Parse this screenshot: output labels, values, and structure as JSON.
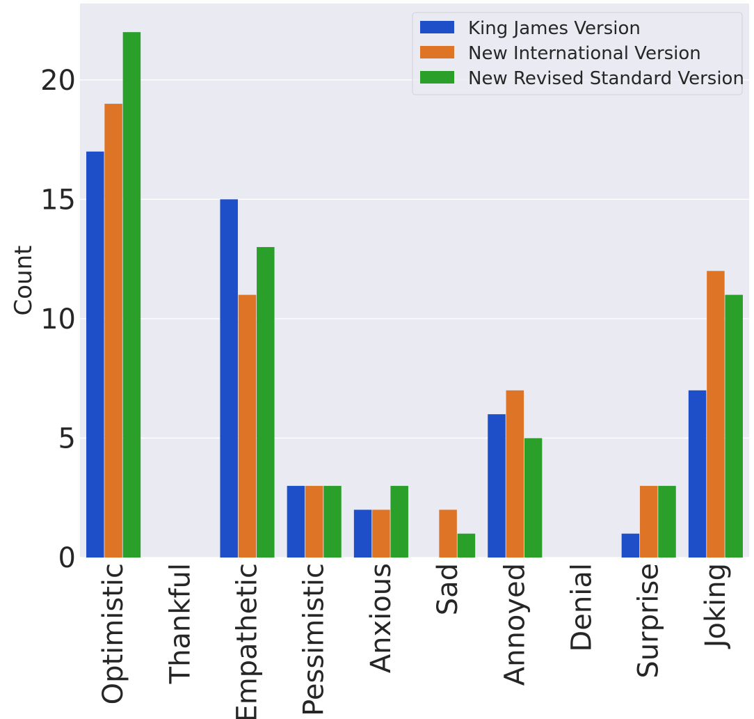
{
  "chart_data": {
    "type": "bar",
    "title": "",
    "xlabel": "",
    "ylabel": "Count",
    "ylim": [
      0,
      23.2
    ],
    "yticks": [
      0,
      5,
      10,
      15,
      20
    ],
    "grid": true,
    "legend_position": "top-right",
    "categories": [
      "Optimistic",
      "Thankful",
      "Empathetic",
      "Pessimistic",
      "Anxious",
      "Sad",
      "Annoyed",
      "Denial",
      "Surprise",
      "Joking"
    ],
    "series": [
      {
        "name": "King James Version",
        "color": "#1f4fc8",
        "values": [
          17,
          0,
          15,
          3,
          2,
          0,
          6,
          0,
          1,
          7
        ]
      },
      {
        "name": "New International Version",
        "color": "#dd7426",
        "values": [
          19,
          0,
          11,
          3,
          2,
          2,
          7,
          0,
          3,
          12
        ]
      },
      {
        "name": "New Revised Standard Version",
        "color": "#2a9f2a",
        "values": [
          22,
          0,
          13,
          3,
          3,
          1,
          5,
          0,
          3,
          11
        ]
      }
    ],
    "colors": {
      "background": "#eaeaf2",
      "grid": "#ffffff",
      "text": "#262626"
    }
  }
}
